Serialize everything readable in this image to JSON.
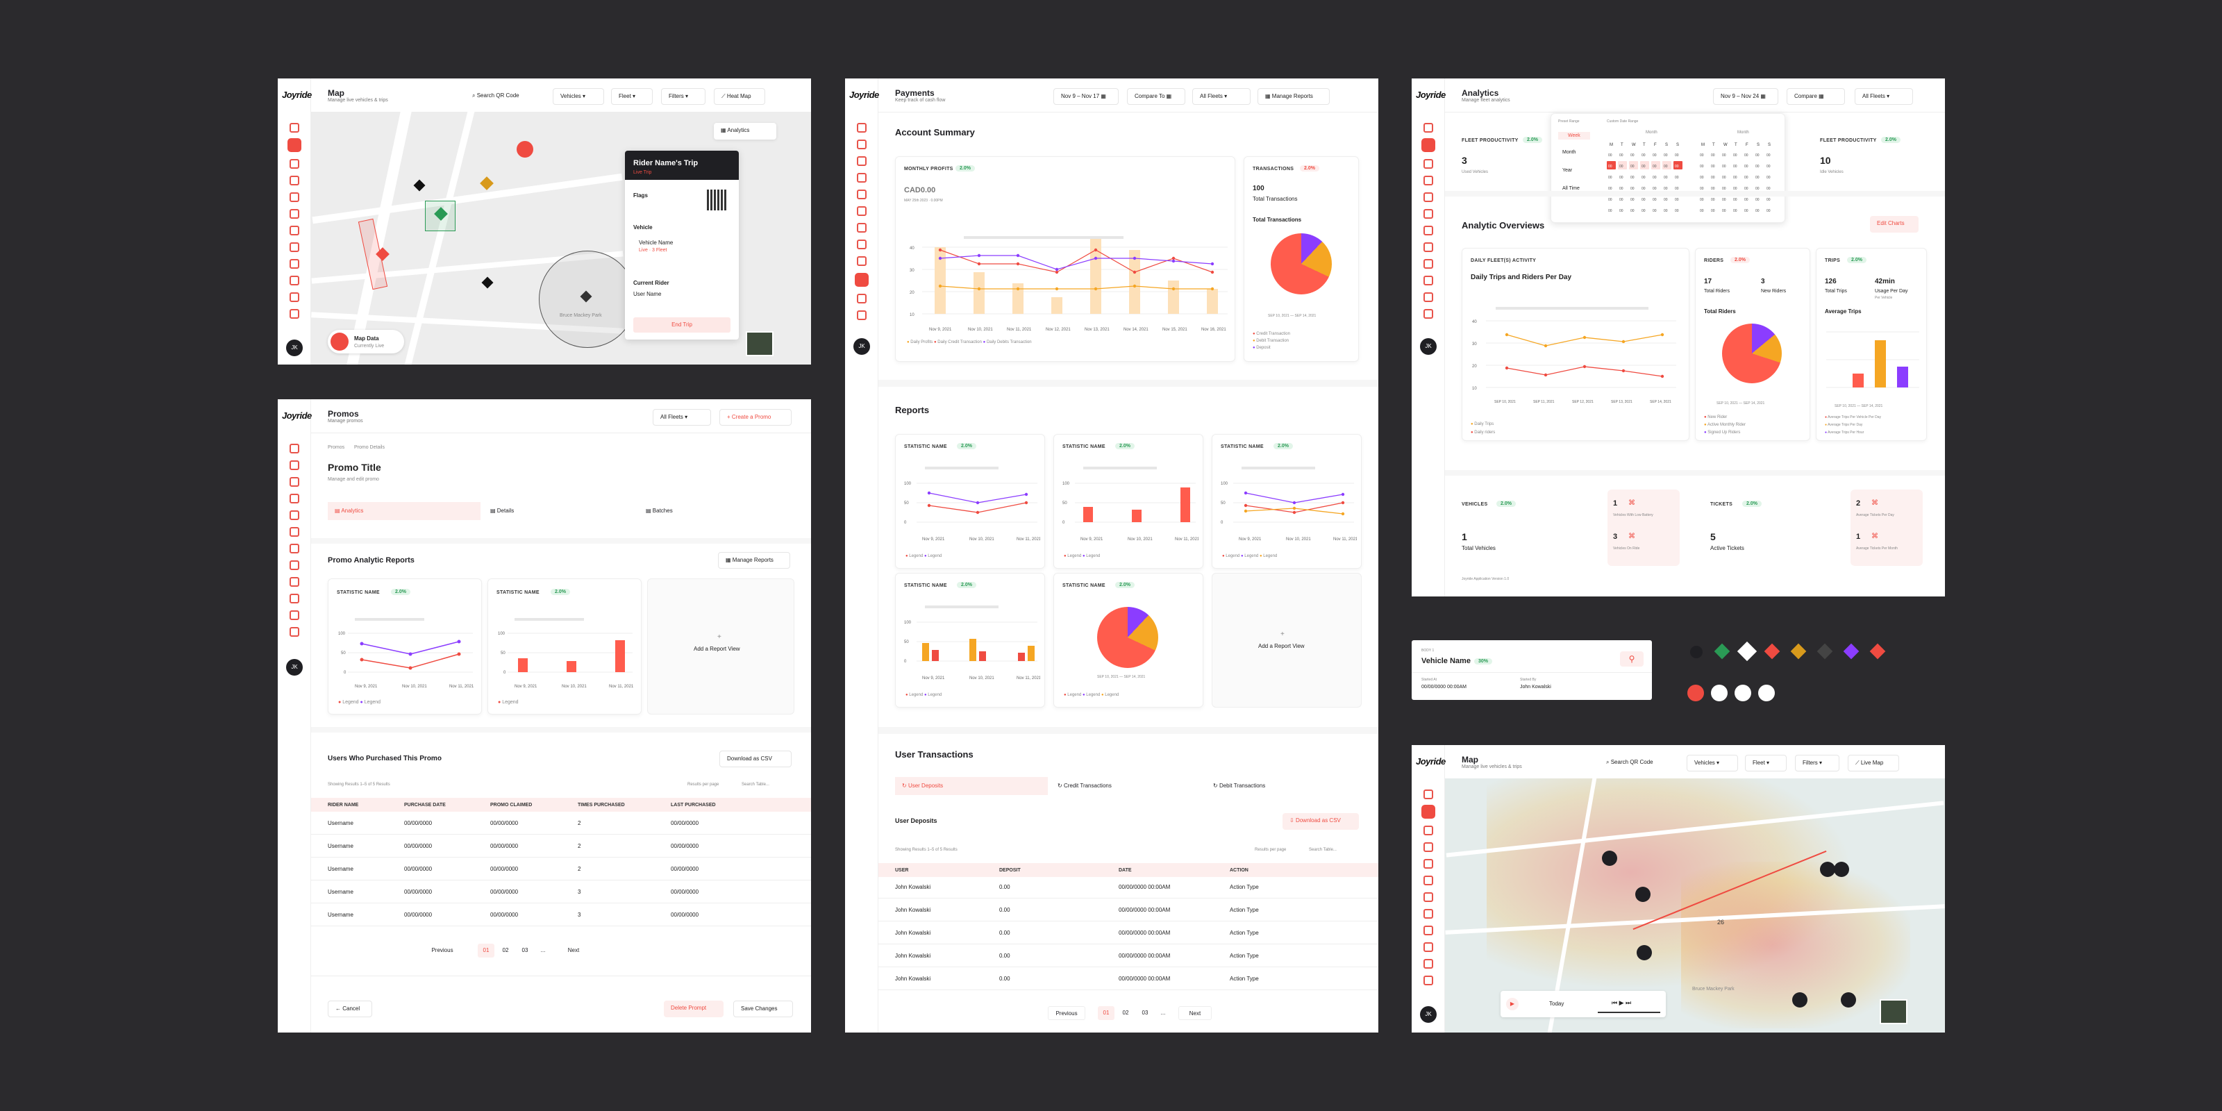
{
  "colors": {
    "accent": "#ef4b41",
    "orange": "#f5a623",
    "purple": "#8b3dff",
    "green": "#2a9a55",
    "map": "#ededed"
  },
  "brand": "Joyride",
  "map1": {
    "title": "Map",
    "subtitle": "Manage live vehicles & trips",
    "search_placeholder": "Search QR Code",
    "vehicles": "Vehicles",
    "fleet": "Fleet",
    "filters": "Filters",
    "heatmap": "Heat Map",
    "analytics_btn": "Analytics",
    "trip_title": "Rider Name's Trip",
    "trip_status": "Live Trip",
    "flags": "Flags",
    "vehicle_label": "Vehicle",
    "vehicle_name": "Vehicle Name",
    "vehicle_status": "Live · 3 Fleet",
    "current_rider": "Current Rider",
    "user_name": "User Name",
    "end_trip": "End Trip",
    "map_data": "Map Data",
    "map_data_sub": "Currently Live",
    "park": "Bruce Mackey Park"
  },
  "payments": {
    "title": "Payments",
    "subtitle": "Keep track of cash flow",
    "date": "Nov 9 – Nov 17",
    "compare": "Compare To",
    "fleets": "All Fleets",
    "manage": "Manage Reports",
    "account_summary": "Account Summary",
    "monthly_profits": "MONTHLY PROFITS",
    "monthly_pct": "2.0%",
    "amount": "CAD0.00",
    "asof": "MAY 25th 2023 · 0.00PM",
    "transactions": "TRANSACTIONS",
    "tx_pct": "2.0%",
    "tx_count": "100",
    "tx_total_label": "Total Transactions",
    "tx_total_title": "Total Transactions",
    "pie_range": "SEP 10, 2021 — SEP 14, 2021",
    "tx_legend": [
      "Credit Transaction",
      "Debit Transaction",
      "Deposit"
    ],
    "legend": [
      "Daily Profits",
      "Daily Credit Transaction",
      "Daily Debits Transaction"
    ],
    "xdates": [
      "Nov 9, 2021",
      "Nov 10, 2021",
      "Nov 11, 2021",
      "Nov 12, 2021",
      "Nov 13, 2021",
      "Nov 14, 2021",
      "Nov 15, 2021",
      "Nov 16, 2021"
    ],
    "reports": "Reports",
    "stat_name": "STATISTIC NAME",
    "stat_pct": "2.0%",
    "legend_label": "Legend",
    "add_report": "Add a Report View",
    "rdates": [
      "Nov 9, 2021",
      "Nov 10, 2021",
      "Nov 11, 2021"
    ],
    "user_tx": "User Transactions",
    "tabs": [
      "User Deposits",
      "Credit Transactions",
      "Debit Transactions"
    ],
    "user_deposits": "User Deposits",
    "download": "Download as CSV",
    "showing": "Showing Results 1–5 of 5 Results",
    "per_page": "Results per page",
    "search": "Search Table...",
    "cols": [
      "USER",
      "DEPOSIT",
      "DATE",
      "ACTION"
    ],
    "rows": [
      {
        "user": "John Kowalski",
        "dep": "0.00",
        "date": "00/00/0000 00:00AM",
        "action": "Action Type"
      },
      {
        "user": "John Kowalski",
        "dep": "0.00",
        "date": "00/00/0000 00:00AM",
        "action": "Action Type"
      },
      {
        "user": "John Kowalski",
        "dep": "0.00",
        "date": "00/00/0000 00:00AM",
        "action": "Action Type"
      },
      {
        "user": "John Kowalski",
        "dep": "0.00",
        "date": "00/00/0000 00:00AM",
        "action": "Action Type"
      },
      {
        "user": "John Kowalski",
        "dep": "0.00",
        "date": "00/00/0000 00:00AM",
        "action": "Action Type"
      }
    ],
    "pager": {
      "prev": "Previous",
      "p1": "01",
      "p2": "02",
      "p3": "03",
      "dots": "...",
      "next": "Next"
    }
  },
  "analytics": {
    "title": "Analytics",
    "subtitle": "Manage fleet analytics",
    "date": "Nov 9 – Nov 24",
    "compare": "Compare",
    "fleets": "All Fleets",
    "fleet_prod": "FLEET PRODUCTIVITY",
    "pct": "2.0%",
    "val1": "3",
    "val1_sub": "Used Vehicles",
    "val2": "10",
    "val2_sub": "Idle Vehicles",
    "preset": "Preset Range",
    "custom": "Custom Date Range",
    "opts": [
      "Week",
      "Month",
      "Year",
      "All Time"
    ],
    "month": "Month",
    "overviews": "Analytic Overviews",
    "edit": "Edit Charts",
    "daily": "DAILY FLEET(S) ACTIVITY",
    "daily_title": "Daily Trips and Riders Per Day",
    "riders": "RIDERS",
    "riders_pct": "2.0%",
    "r_total": "17",
    "r_total_l": "Total Riders",
    "r_new": "3",
    "r_new_l": "New Riders",
    "r_chart": "Total Riders",
    "trips": "TRIPS",
    "trips_pct": "2.0%",
    "t_total": "126",
    "t_total_l": "Total Trips",
    "t_usage": "42min",
    "t_usage_l": "Usage Per Day",
    "t_usage_s": "Per Vehicle",
    "t_chart": "Average Trips",
    "daily_legend": [
      "Daily Trips",
      "Daily riders"
    ],
    "rider_legend": [
      "New Rider",
      "Active Monthly Rider",
      "Signed Up Riders"
    ],
    "trip_legend": [
      "Average Trips Per Vehicle Per Day",
      "Average Trips Per Day",
      "Average Trips Per Hour"
    ],
    "range": "SEP 10, 2021 — SEP 14, 2021",
    "adates": [
      "SEP 10, 2021",
      "SEP 11, 2021",
      "SEP 12, 2021",
      "SEP 13, 2021",
      "SEP 14, 2021"
    ],
    "vehicles": "VEHICLES",
    "v_pct": "2.0%",
    "v_total": "1",
    "v_total_l": "Total Vehicles",
    "v_a": "1",
    "v_a_l": "Vehicles With Low Battery",
    "v_b": "3",
    "v_b_l": "Vehicles On Ride",
    "tickets": "TICKETS",
    "t2_pct": "2.0%",
    "tk_total": "5",
    "tk_total_l": "Active Tickets",
    "tk_a": "2",
    "tk_a_l": "Average Tickets Per Day",
    "tk_b": "1",
    "tk_b_l": "Average Tickets Per Month",
    "footer": "Joyride Application Version 1.0"
  },
  "promos": {
    "title": "Promos",
    "subtitle": "Manage promos",
    "fleets": "All Fleets",
    "create": "Create a Promo",
    "crumb1": "Promos",
    "crumb2": "Promo Details",
    "promo_title": "Promo Title",
    "promo_sub": "Manage and edit promo",
    "tabs": [
      "Analytics",
      "Details",
      "Batches"
    ],
    "reports": "Promo Analytic Reports",
    "manage": "Manage Reports",
    "stat": "STATISTIC NAME",
    "pct": "2.0%",
    "legend": "Legend",
    "add": "Add a Report View",
    "dates": [
      "Nov 9, 2021",
      "Nov 10, 2021",
      "Nov 11, 2021"
    ],
    "users": "Users Who Purchased This Promo",
    "download": "Download as CSV",
    "showing": "Showing Results 1–5 of 5 Results",
    "per_page": "Results per page",
    "search": "Search Table...",
    "cols": [
      "RIDER NAME",
      "PURCHASE DATE",
      "PROMO CLAIMED",
      "TIMES PURCHASED",
      "LAST PURCHASED"
    ],
    "rows": [
      {
        "n": "Username",
        "p": "00/00/0000",
        "c": "00/00/0000",
        "t": "2",
        "l": "00/00/0000"
      },
      {
        "n": "Username",
        "p": "00/00/0000",
        "c": "00/00/0000",
        "t": "2",
        "l": "00/00/0000"
      },
      {
        "n": "Username",
        "p": "00/00/0000",
        "c": "00/00/0000",
        "t": "2",
        "l": "00/00/0000"
      },
      {
        "n": "Username",
        "p": "00/00/0000",
        "c": "00/00/0000",
        "t": "3",
        "l": "00/00/0000"
      },
      {
        "n": "Username",
        "p": "00/00/0000",
        "c": "00/00/0000",
        "t": "3",
        "l": "00/00/0000"
      }
    ],
    "pager": {
      "prev": "Previous",
      "p1": "01",
      "p2": "02",
      "p3": "03",
      "dots": "...",
      "next": "Next"
    },
    "cancel": "Cancel",
    "delete": "Delete Prompt",
    "save": "Save Changes"
  },
  "vcard": {
    "label": "BODY 1",
    "name": "Vehicle Name",
    "batt": "30%",
    "l1": "Started At",
    "v1": "00/00/0000 00:00AM",
    "l2": "Started By",
    "v2": "John Kowalski"
  },
  "map2": {
    "title": "Map",
    "subtitle": "Manage live vehicles & trips",
    "search_placeholder": "Search QR Code",
    "vehicles": "Vehicles",
    "fleet": "Fleet",
    "filters": "Filters",
    "live": "Live Map",
    "today": "Today",
    "park": "Bruce Mackey Park",
    "cluster": "26"
  },
  "avatar": "JK"
}
